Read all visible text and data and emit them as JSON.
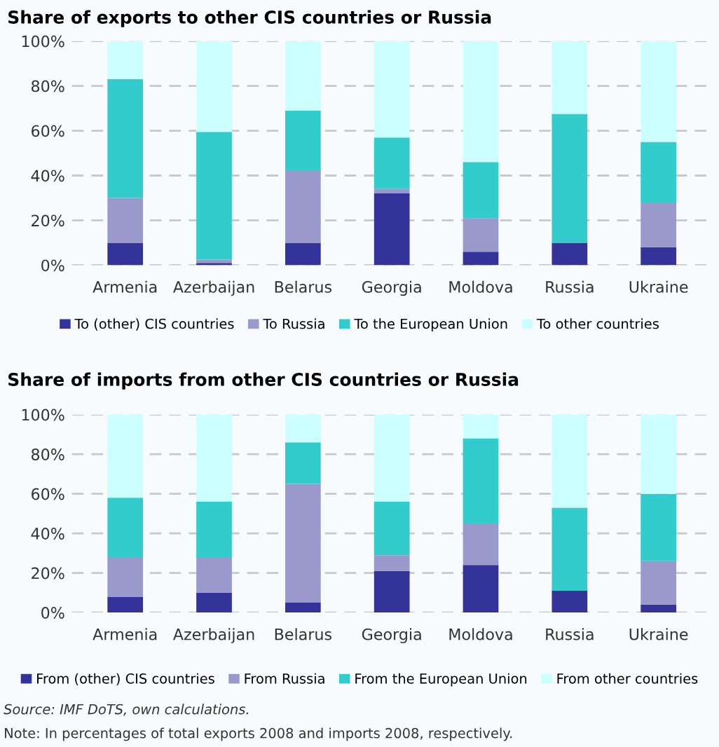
{
  "chart_data": [
    {
      "type": "bar",
      "stacked": true,
      "title": "Share of exports to other CIS countries or Russia",
      "categories": [
        "Armenia",
        "Azerbaijan",
        "Belarus",
        "Georgia",
        "Moldova",
        "Russia",
        "Ukraine"
      ],
      "series": [
        {
          "name": "To (other) CIS countries",
          "color": "#333399",
          "values": [
            10,
            1,
            10,
            32,
            6,
            10,
            8
          ]
        },
        {
          "name": "To Russia",
          "color": "#9999cc",
          "values": [
            20,
            1.5,
            32,
            2,
            15,
            0,
            20
          ]
        },
        {
          "name": "To the European Union",
          "color": "#33cccc",
          "values": [
            53,
            57,
            27,
            23,
            25,
            57.5,
            27
          ]
        },
        {
          "name": "To other countries",
          "color": "#ccffff",
          "values": [
            17,
            40.5,
            31,
            43,
            54,
            32.5,
            45
          ]
        }
      ],
      "ylim": [
        0,
        100
      ],
      "yticks": [
        {
          "value": 0,
          "label": "0%"
        },
        {
          "value": 20,
          "label": "20%"
        },
        {
          "value": 40,
          "label": "40%"
        },
        {
          "value": 60,
          "label": "60%"
        },
        {
          "value": 80,
          "label": "80%"
        },
        {
          "value": 100,
          "label": "100%"
        }
      ],
      "grid": "y",
      "legend": "bottom"
    },
    {
      "type": "bar",
      "stacked": true,
      "title": "Share of imports from other CIS countries or Russia",
      "categories": [
        "Armenia",
        "Azerbaijan",
        "Belarus",
        "Georgia",
        "Moldova",
        "Russia",
        "Ukraine"
      ],
      "series": [
        {
          "name": "From (other) CIS countries",
          "color": "#333399",
          "values": [
            8,
            10,
            5,
            21,
            24,
            11,
            4
          ]
        },
        {
          "name": "From Russia",
          "color": "#9999cc",
          "values": [
            20,
            18,
            60,
            8,
            21,
            0,
            22
          ]
        },
        {
          "name": "From the European Union",
          "color": "#33cccc",
          "values": [
            30,
            28,
            21,
            27,
            43,
            42,
            34
          ]
        },
        {
          "name": "From other countries",
          "color": "#ccffff",
          "values": [
            42,
            44,
            14,
            44,
            12,
            47,
            40
          ]
        }
      ],
      "ylim": [
        0,
        100
      ],
      "yticks": [
        {
          "value": 0,
          "label": "0%"
        },
        {
          "value": 20,
          "label": "20%"
        },
        {
          "value": 40,
          "label": "40%"
        },
        {
          "value": 60,
          "label": "60%"
        },
        {
          "value": 80,
          "label": "80%"
        },
        {
          "value": 100,
          "label": "100%"
        }
      ],
      "grid": "y",
      "legend": "bottom",
      "annotations": [
        "Source: IMF DoTS, own calculations.",
        "Note: In percentages of total exports 2008 and imports 2008, respectively."
      ]
    }
  ]
}
